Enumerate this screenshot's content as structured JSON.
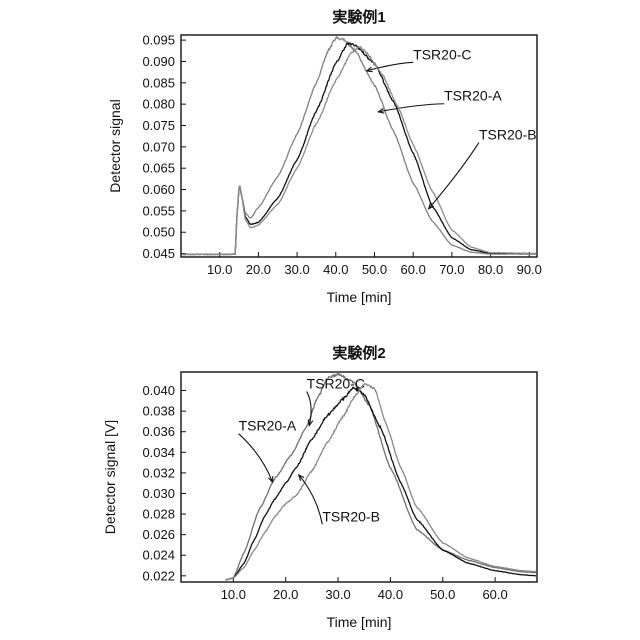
{
  "chart_data": [
    {
      "type": "line",
      "title": "実験例1",
      "xlabel": "Time [min]",
      "ylabel": "Detector signal",
      "xlim": [
        0,
        92
      ],
      "ylim": [
        0.0442,
        0.0962
      ],
      "xticks": [
        10,
        20,
        30,
        40,
        50,
        60,
        70,
        80,
        90
      ],
      "xtick_labels": [
        "10.0",
        "20.0",
        "30.0",
        "40.0",
        "50.0",
        "60.0",
        "70.0",
        "80.0",
        "90.0"
      ],
      "yticks": [
        0.045,
        0.05,
        0.055,
        0.06,
        0.065,
        0.07,
        0.075,
        0.08,
        0.085,
        0.09,
        0.095
      ],
      "ytick_labels": [
        "0.045",
        "0.050",
        "0.055",
        "0.060",
        "0.065",
        "0.070",
        "0.075",
        "0.080",
        "0.085",
        "0.090",
        "0.095"
      ],
      "grid": false,
      "legend": "callout labels",
      "series": [
        {
          "name": "TSR20-C",
          "color": "#808080",
          "points": [
            [
              0,
              0.0448
            ],
            [
              13,
              0.0448
            ],
            [
              14,
              0.0449
            ],
            [
              14.5,
              0.0545
            ],
            [
              15.1,
              0.0612
            ],
            [
              15.8,
              0.058
            ],
            [
              16.6,
              0.0545
            ],
            [
              18,
              0.0533
            ],
            [
              20,
              0.0558
            ],
            [
              25,
              0.063
            ],
            [
              30,
              0.073
            ],
            [
              35,
              0.085
            ],
            [
              38,
              0.0925
            ],
            [
              40,
              0.0955
            ],
            [
              42,
              0.0952
            ],
            [
              45,
              0.0925
            ],
            [
              50,
              0.0845
            ],
            [
              55,
              0.0735
            ],
            [
              60,
              0.0615
            ],
            [
              65,
              0.0525
            ],
            [
              70,
              0.047
            ],
            [
              75,
              0.0453
            ],
            [
              80,
              0.0449
            ],
            [
              92,
              0.0449
            ]
          ],
          "label_text": "TSR20-C",
          "label_pos": [
            60,
            0.0905
          ],
          "label_arrow_to": [
            48,
            0.0878
          ]
        },
        {
          "name": "TSR20-A",
          "color": "#111111",
          "points": [
            [
              0,
              0.0448
            ],
            [
              13,
              0.0448
            ],
            [
              14,
              0.0449
            ],
            [
              14.5,
              0.0545
            ],
            [
              15.1,
              0.0612
            ],
            [
              15.8,
              0.058
            ],
            [
              16.6,
              0.0536
            ],
            [
              18,
              0.0518
            ],
            [
              20,
              0.0523
            ],
            [
              25,
              0.058
            ],
            [
              30,
              0.067
            ],
            [
              35,
              0.0785
            ],
            [
              40,
              0.0895
            ],
            [
              43,
              0.0942
            ],
            [
              45,
              0.0938
            ],
            [
              50,
              0.0895
            ],
            [
              55,
              0.0805
            ],
            [
              60,
              0.0685
            ],
            [
              65,
              0.056
            ],
            [
              70,
              0.0487
            ],
            [
              75,
              0.0459
            ],
            [
              80,
              0.0451
            ],
            [
              92,
              0.045
            ]
          ],
          "label_text": "TSR20-A",
          "label_pos": [
            68,
            0.0808
          ],
          "label_arrow_to": [
            51,
            0.0782
          ]
        },
        {
          "name": "TSR20-B",
          "color": "#8c8c8c",
          "points": [
            [
              0,
              0.0448
            ],
            [
              13,
              0.0448
            ],
            [
              14,
              0.0449
            ],
            [
              14.5,
              0.0545
            ],
            [
              15.1,
              0.0612
            ],
            [
              15.8,
              0.058
            ],
            [
              16.6,
              0.053
            ],
            [
              18,
              0.051
            ],
            [
              20,
              0.0517
            ],
            [
              25,
              0.0565
            ],
            [
              30,
              0.065
            ],
            [
              35,
              0.0755
            ],
            [
              40,
              0.0855
            ],
            [
              44,
              0.092
            ],
            [
              46,
              0.0935
            ],
            [
              48,
              0.092
            ],
            [
              52,
              0.087
            ],
            [
              56,
              0.0795
            ],
            [
              60,
              0.0705
            ],
            [
              65,
              0.0595
            ],
            [
              70,
              0.0505
            ],
            [
              75,
              0.0465
            ],
            [
              80,
              0.0452
            ],
            [
              92,
              0.045
            ]
          ],
          "label_text": "TSR20-B",
          "label_pos": [
            77,
            0.0717
          ],
          "label_arrow_to": [
            64,
            0.0555
          ]
        }
      ]
    },
    {
      "type": "line",
      "title": "実験例2",
      "xlabel": "Time [min]",
      "ylabel": "Detector signal [V]",
      "xlim": [
        0,
        68
      ],
      "ylim": [
        0.0214,
        0.0418
      ],
      "xticks": [
        10,
        20,
        30,
        40,
        50,
        60
      ],
      "xtick_labels": [
        "10.0",
        "20.0",
        "30.0",
        "40.0",
        "50.0",
        "60.0"
      ],
      "yticks": [
        0.022,
        0.024,
        0.026,
        0.028,
        0.03,
        0.032,
        0.034,
        0.036,
        0.038,
        0.04
      ],
      "ytick_labels": [
        "0.022",
        "0.024",
        "0.026",
        "0.028",
        "0.030",
        "0.032",
        "0.034",
        "0.036",
        "0.038",
        "0.040"
      ],
      "grid": false,
      "legend": "callout labels",
      "series": [
        {
          "name": "TSR20-C",
          "color": "#707070",
          "points": [
            [
              8.5,
              0.0216
            ],
            [
              10,
              0.0218
            ],
            [
              12,
              0.0242
            ],
            [
              15,
              0.0285
            ],
            [
              18,
              0.0315
            ],
            [
              21,
              0.0337
            ],
            [
              24,
              0.0365
            ],
            [
              26,
              0.0392
            ],
            [
              28,
              0.0412
            ],
            [
              30,
              0.0416
            ],
            [
              33,
              0.0408
            ],
            [
              36,
              0.0385
            ],
            [
              40,
              0.0325
            ],
            [
              45,
              0.0265
            ],
            [
              50,
              0.0245
            ],
            [
              55,
              0.0235
            ],
            [
              60,
              0.0228
            ],
            [
              65,
              0.0224
            ],
            [
              68,
              0.0223
            ]
          ],
          "label_text": "TSR20-C",
          "label_pos": [
            24,
            0.0402
          ],
          "label_arrow_to": [
            24.5,
            0.0366
          ]
        },
        {
          "name": "TSR20-A",
          "color": "#111111",
          "points": [
            [
              8.5,
              0.0216
            ],
            [
              10,
              0.0218
            ],
            [
              12,
              0.0232
            ],
            [
              14,
              0.0255
            ],
            [
              16,
              0.0278
            ],
            [
              18,
              0.0295
            ],
            [
              20,
              0.031
            ],
            [
              22,
              0.0325
            ],
            [
              25,
              0.0353
            ],
            [
              28,
              0.0376
            ],
            [
              31,
              0.0392
            ],
            [
              33,
              0.0403
            ],
            [
              35,
              0.0396
            ],
            [
              38,
              0.0365
            ],
            [
              42,
              0.031
            ],
            [
              45,
              0.0275
            ],
            [
              50,
              0.0245
            ],
            [
              55,
              0.0232
            ],
            [
              60,
              0.0225
            ],
            [
              65,
              0.0221
            ],
            [
              68,
              0.022
            ]
          ],
          "label_text": "TSR20-A",
          "label_pos": [
            11,
            0.0361
          ],
          "label_arrow_to": [
            17.5,
            0.0311
          ]
        },
        {
          "name": "TSR20-B",
          "color": "#8a8a8a",
          "points": [
            [
              8.5,
              0.0216
            ],
            [
              10,
              0.0218
            ],
            [
              12,
              0.0228
            ],
            [
              14,
              0.0245
            ],
            [
              16,
              0.0262
            ],
            [
              18,
              0.0278
            ],
            [
              20,
              0.029
            ],
            [
              22,
              0.0298
            ],
            [
              25,
              0.0322
            ],
            [
              28,
              0.035
            ],
            [
              31,
              0.0375
            ],
            [
              33,
              0.0393
            ],
            [
              35,
              0.0406
            ],
            [
              37,
              0.0402
            ],
            [
              39,
              0.037
            ],
            [
              42,
              0.0325
            ],
            [
              45,
              0.0287
            ],
            [
              50,
              0.0252
            ],
            [
              55,
              0.0237
            ],
            [
              60,
              0.0229
            ],
            [
              65,
              0.0225
            ],
            [
              68,
              0.0224
            ]
          ],
          "label_text": "TSR20-B",
          "label_pos": [
            27,
            0.0273
          ],
          "label_arrow_to": [
            22.5,
            0.0318
          ]
        }
      ]
    }
  ]
}
